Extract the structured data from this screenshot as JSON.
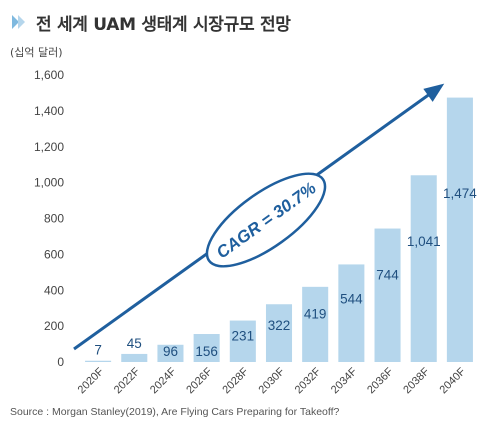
{
  "header": {
    "title": "전 세계 UAM 생태계 시장규모 전망",
    "unit_label": "(십억 달러)"
  },
  "footer": {
    "source": "Source : Morgan Stanley(2019), Are Flying Cars Preparing for Takeoff?"
  },
  "colors": {
    "bar": "#b5d6ec",
    "arrow": "#1f5f9e",
    "axis_text": "#444444",
    "label_text": "#1f4f7f",
    "title_marker": "#7fb9df"
  },
  "chart_data": {
    "type": "bar",
    "title": "전 세계 UAM 생태계 시장규모 전망",
    "ylabel": "(십억 달러)",
    "xlabel": "",
    "ylim": [
      0,
      1600
    ],
    "yticks": [
      0,
      200,
      400,
      600,
      800,
      1000,
      1200,
      1400,
      1600
    ],
    "ytick_labels": [
      "0",
      "200",
      "400",
      "600",
      "800",
      "1,000",
      "1,200",
      "1,400",
      "1,600"
    ],
    "categories": [
      "2020F",
      "2022F",
      "2024F",
      "2026F",
      "2028F",
      "2030F",
      "2032F",
      "2034F",
      "2036F",
      "2038F",
      "2040F"
    ],
    "values": [
      7,
      45,
      96,
      156,
      231,
      322,
      419,
      544,
      744,
      1041,
      1474
    ],
    "value_labels": [
      "7",
      "45",
      "96",
      "156",
      "231",
      "322",
      "419",
      "544",
      "744",
      "1,041",
      "1,474"
    ],
    "grid": false,
    "annotation": "CAGR = 30.7%"
  }
}
